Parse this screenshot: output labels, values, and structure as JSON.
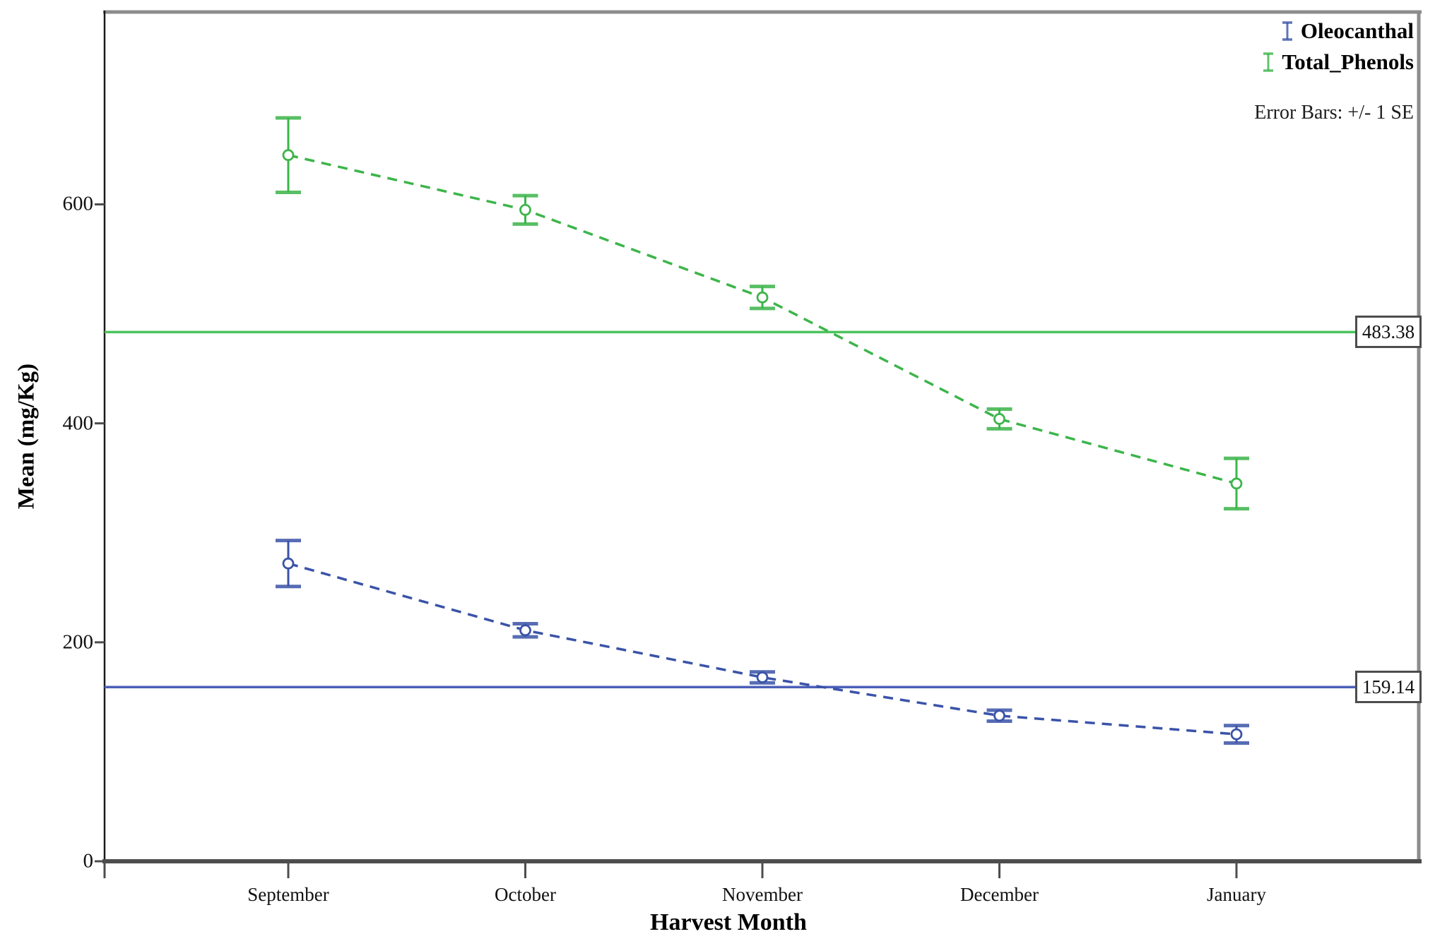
{
  "chart_data": {
    "type": "line",
    "title": "",
    "xlabel": "Harvest Month",
    "ylabel": "Mean (mg/Kg)",
    "categories": [
      "September",
      "October",
      "November",
      "December",
      "January"
    ],
    "yticks": [
      0,
      200,
      400,
      600
    ],
    "ylim": [
      0,
      777
    ],
    "grid": false,
    "legend_position": "top-right-inside",
    "error_bars_note": "Error Bars: +/- 1 SE",
    "series": [
      {
        "name": "Oleocanthal",
        "color": "#3A53A8",
        "legend_icon": "errorbar-icon",
        "linestyle": "dashed",
        "marker": "open-circle",
        "values": [
          272,
          211,
          168,
          133,
          116
        ],
        "se": [
          21,
          6,
          5,
          5,
          8
        ]
      },
      {
        "name": "Total_Phenols",
        "color": "#3CB54A",
        "legend_icon": "errorbar-icon",
        "linestyle": "dashed",
        "marker": "open-circle",
        "values": [
          645,
          595,
          515,
          404,
          345
        ],
        "se": [
          34,
          13,
          10,
          9,
          23
        ]
      }
    ],
    "reference_lines": [
      {
        "label": "483.38",
        "value": 483.38,
        "color": "#4CC45C"
      },
      {
        "label": "159.14",
        "value": 159.14,
        "color": "#4C60B8"
      }
    ]
  }
}
